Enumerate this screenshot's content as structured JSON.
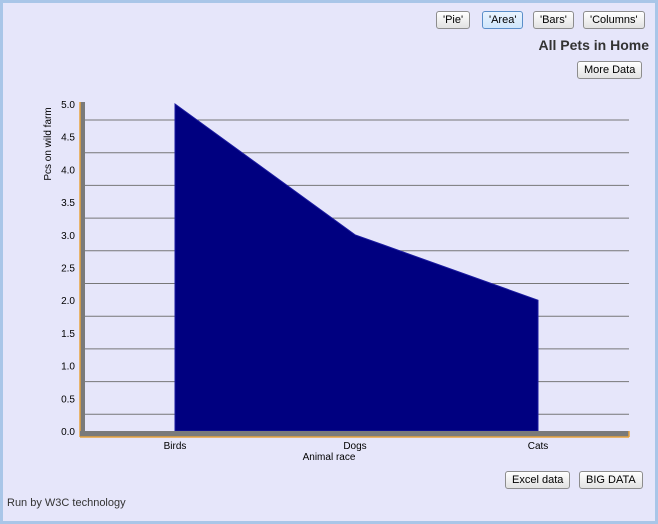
{
  "toolbar": {
    "pie_label": "'Pie'",
    "area_label": "'Area'",
    "bars_label": "'Bars'",
    "columns_label": "'Columns'",
    "active": "area"
  },
  "more_data_label": "More Data",
  "excel_label": "Excel data",
  "big_data_label": "BIG DATA",
  "footer": "Run by W3C technology",
  "colors": {
    "background": "#e6e6fa",
    "area_fill": "#000080",
    "axis_bar": "#7a7a7a",
    "axis_edge": "#e8a33c",
    "gridline": "#777777"
  },
  "chart_data": {
    "type": "area",
    "title": "All Pets in Home",
    "xlabel": "Animal race",
    "ylabel": "Pcs on wild farm",
    "categories": [
      "Birds",
      "Dogs",
      "Cats"
    ],
    "series": [
      {
        "values": [
          5.0,
          3.0,
          2.0
        ]
      }
    ],
    "ylim": [
      0,
      5
    ],
    "yticks": [
      "0.0",
      "0.5",
      "1.0",
      "1.5",
      "2.0",
      "2.5",
      "3.0",
      "3.5",
      "4.0",
      "4.5",
      "5.0"
    ],
    "grid": true,
    "legend": "none"
  }
}
